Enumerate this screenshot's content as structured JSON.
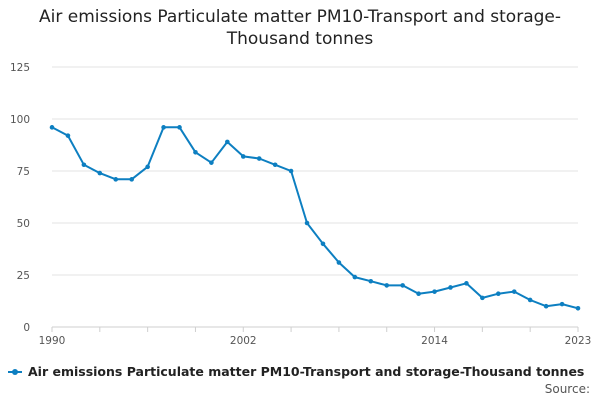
{
  "chart_data": {
    "type": "line",
    "title": "Air emissions Particulate matter PM10-Transport and storage-Thousand tonnes",
    "xlabel": "",
    "ylabel": "",
    "xlim": [
      1990,
      2023
    ],
    "ylim": [
      0,
      125
    ],
    "yticks": [
      0,
      25,
      50,
      75,
      100,
      125
    ],
    "xticks": [
      1990,
      2002,
      2014,
      2023
    ],
    "grid": true,
    "legend_position": "bottom-left",
    "series": [
      {
        "name": "Air emissions Particulate matter PM10-Transport and storage-Thousand tonnes",
        "color": "#0d7fc1",
        "x": [
          1990,
          1991,
          1992,
          1993,
          1994,
          1995,
          1996,
          1997,
          1998,
          1999,
          2000,
          2001,
          2002,
          2003,
          2004,
          2005,
          2006,
          2007,
          2008,
          2009,
          2010,
          2011,
          2012,
          2013,
          2014,
          2015,
          2016,
          2017,
          2018,
          2019,
          2020,
          2021,
          2022,
          2023
        ],
        "values": [
          96,
          92,
          78,
          74,
          71,
          71,
          77,
          96,
          96,
          84,
          79,
          89,
          82,
          81,
          78,
          75,
          50,
          40,
          31,
          24,
          22,
          20,
          20,
          16,
          17,
          19,
          21,
          14,
          16,
          17,
          13,
          10,
          11,
          9
        ]
      }
    ]
  },
  "source_label": "Source:"
}
